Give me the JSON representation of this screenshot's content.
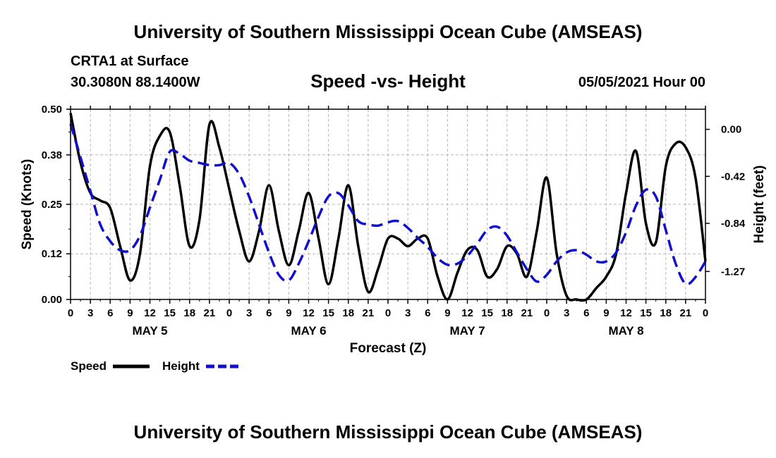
{
  "header": {
    "title": "University of Southern Mississippi Ocean Cube (AMSEAS)",
    "station": "CRTA1 at Surface",
    "coords": "30.3080N  88.1400W",
    "subtitle": "Speed -vs- Height",
    "datetime": "05/05/2021 Hour 00"
  },
  "footer": {
    "title": "University of Southern Mississippi Ocean Cube (AMSEAS)"
  },
  "chart_data": {
    "type": "line",
    "title": "Speed -vs- Height",
    "xlabel": "Forecast (Z)",
    "ylabel": "Speed (Knots)",
    "y2label": "Height (feet)",
    "xlim": [
      0,
      96
    ],
    "ylim": [
      0,
      0.5
    ],
    "y2lim": [
      -1.52,
      0.18
    ],
    "grid": true,
    "x_ticks": [
      0,
      3,
      6,
      9,
      12,
      15,
      18,
      21,
      24,
      27,
      30,
      33,
      36,
      39,
      42,
      45,
      48,
      51,
      54,
      57,
      60,
      63,
      66,
      69,
      72,
      75,
      78,
      81,
      84,
      87,
      90,
      93,
      96
    ],
    "x_tick_labels": [
      "0",
      "3",
      "6",
      "9",
      "12",
      "15",
      "18",
      "21",
      "0",
      "3",
      "6",
      "9",
      "12",
      "15",
      "18",
      "21",
      "0",
      "3",
      "6",
      "9",
      "12",
      "15",
      "18",
      "21",
      "0",
      "3",
      "6",
      "9",
      "12",
      "15",
      "18",
      "21",
      "0"
    ],
    "day_labels": [
      {
        "x": 12,
        "label": "MAY 5"
      },
      {
        "x": 36,
        "label": "MAY 6"
      },
      {
        "x": 60,
        "label": "MAY 7"
      },
      {
        "x": 84,
        "label": "MAY 8"
      }
    ],
    "y_ticks": [
      0,
      0.12,
      0.25,
      0.38,
      0.5
    ],
    "y_tick_labels": [
      "0.00",
      "0.12",
      "0.25",
      "0.38",
      "0.50"
    ],
    "y2_ticks": [
      0,
      -0.42,
      -0.84,
      -1.27
    ],
    "y2_tick_labels": [
      "0.00",
      "-0.42",
      "-0.84",
      "-1.27"
    ],
    "legend": [
      {
        "name": "Speed",
        "color": "#000000",
        "style": "solid"
      },
      {
        "name": "Height",
        "color": "#1010cc",
        "style": "dashed"
      }
    ],
    "series": [
      {
        "name": "Speed",
        "axis": "left",
        "color": "#000000",
        "x": [
          0,
          1.5,
          3,
          4.5,
          6,
          7.5,
          9,
          10.5,
          12,
          13.5,
          15,
          16.5,
          18,
          19.5,
          21,
          22.5,
          24,
          25.5,
          27,
          28.5,
          30,
          31.5,
          33,
          34.5,
          36,
          37.5,
          39,
          40.5,
          42,
          43.5,
          45,
          46.5,
          48,
          49.5,
          51,
          52.5,
          54,
          55.5,
          57,
          58.5,
          60,
          61.5,
          63,
          64.5,
          66,
          67.5,
          69,
          70.5,
          72,
          73.5,
          75,
          76.5,
          78,
          79.5,
          81,
          82.5,
          84,
          85.5,
          87,
          88.5,
          90,
          91.5,
          93,
          94.5,
          96
        ],
        "values": [
          0.49,
          0.36,
          0.28,
          0.26,
          0.24,
          0.14,
          0.05,
          0.12,
          0.35,
          0.43,
          0.44,
          0.3,
          0.14,
          0.21,
          0.46,
          0.4,
          0.29,
          0.18,
          0.1,
          0.18,
          0.3,
          0.18,
          0.09,
          0.18,
          0.28,
          0.16,
          0.04,
          0.16,
          0.3,
          0.14,
          0.02,
          0.08,
          0.16,
          0.16,
          0.14,
          0.16,
          0.16,
          0.06,
          0.0,
          0.07,
          0.13,
          0.13,
          0.06,
          0.08,
          0.14,
          0.12,
          0.06,
          0.18,
          0.32,
          0.12,
          0.01,
          0.0,
          0.0,
          0.03,
          0.06,
          0.12,
          0.28,
          0.39,
          0.2,
          0.15,
          0.35,
          0.41,
          0.4,
          0.32,
          0.1
        ]
      },
      {
        "name": "Height",
        "axis": "right",
        "color": "#1010cc",
        "x": [
          0,
          1.5,
          3,
          4.5,
          6,
          7.5,
          9,
          10.5,
          12,
          13.5,
          15,
          16.5,
          18,
          19.5,
          21,
          22.5,
          24,
          25.5,
          27,
          28.5,
          30,
          31.5,
          33,
          34.5,
          36,
          37.5,
          39,
          40.5,
          42,
          43.5,
          45,
          46.5,
          48,
          49.5,
          51,
          52.5,
          54,
          55.5,
          57,
          58.5,
          60,
          61.5,
          63,
          64.5,
          66,
          67.5,
          69,
          70.5,
          72,
          73.5,
          75,
          76.5,
          78,
          79.5,
          81,
          82.5,
          84,
          85.5,
          87,
          88.5,
          90,
          91.5,
          93,
          94.5,
          96
        ],
        "values": [
          0.05,
          -0.25,
          -0.55,
          -0.85,
          -1.0,
          -1.08,
          -1.08,
          -0.95,
          -0.7,
          -0.45,
          -0.2,
          -0.22,
          -0.28,
          -0.3,
          -0.32,
          -0.32,
          -0.3,
          -0.4,
          -0.6,
          -0.85,
          -1.1,
          -1.3,
          -1.35,
          -1.2,
          -1.0,
          -0.78,
          -0.6,
          -0.57,
          -0.68,
          -0.82,
          -0.85,
          -0.86,
          -0.83,
          -0.82,
          -0.88,
          -0.97,
          -1.05,
          -1.15,
          -1.21,
          -1.2,
          -1.13,
          -1.02,
          -0.9,
          -0.87,
          -0.95,
          -1.1,
          -1.25,
          -1.36,
          -1.3,
          -1.18,
          -1.1,
          -1.08,
          -1.12,
          -1.18,
          -1.18,
          -1.1,
          -0.92,
          -0.68,
          -0.54,
          -0.6,
          -0.9,
          -1.2,
          -1.38,
          -1.32,
          -1.18
        ]
      }
    ]
  }
}
